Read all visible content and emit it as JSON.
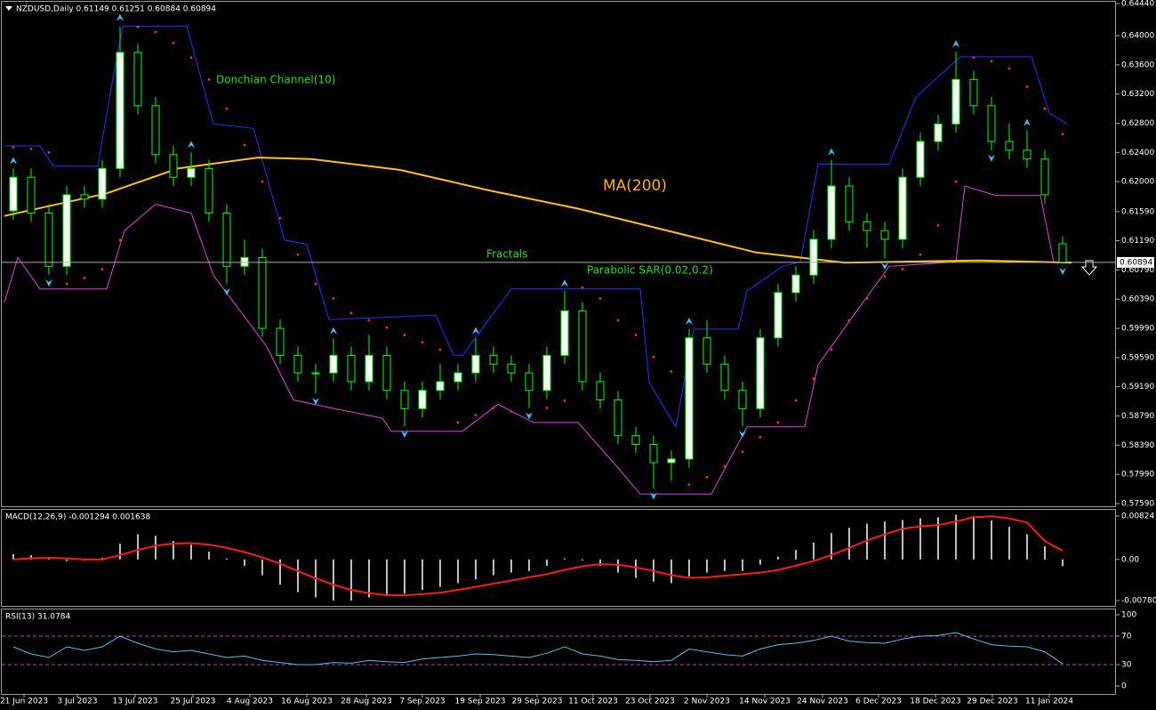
{
  "chart_data": [
    {
      "type": "candlestick",
      "title": "NZDUSD,Daily  0.61149 0.61251 0.60884 0.60894",
      "xlim": [
        -0.5,
        62
      ],
      "ylim": [
        0.57553,
        0.64464
      ],
      "yticks": [
        {
          "value": 0.6444,
          "label": "0.64440"
        },
        {
          "value": 0.64,
          "label": "0.64000"
        },
        {
          "value": 0.636,
          "label": "0.63600"
        },
        {
          "value": 0.632,
          "label": "0.63200"
        },
        {
          "value": 0.628,
          "label": "0.62800"
        },
        {
          "value": 0.624,
          "label": "0.62400"
        },
        {
          "value": 0.62,
          "label": "0.62000"
        },
        {
          "value": 0.6159,
          "label": "0.61590"
        },
        {
          "value": 0.6119,
          "label": "0.61190"
        },
        {
          "value": 0.6079,
          "label": "0.60790"
        },
        {
          "value": 0.6039,
          "label": "0.60390"
        },
        {
          "value": 0.5999,
          "label": "0.59990"
        },
        {
          "value": 0.5959,
          "label": "0.59590"
        },
        {
          "value": 0.5919,
          "label": "0.59190"
        },
        {
          "value": 0.5879,
          "label": "0.58790"
        },
        {
          "value": 0.5839,
          "label": "0.58390"
        },
        {
          "value": 0.5799,
          "label": "0.57990"
        },
        {
          "value": 0.5759,
          "label": "0.57590"
        }
      ],
      "color": "#00ff00",
      "open": [
        0.616,
        0.6206,
        0.6157,
        0.6084,
        0.6182,
        0.6176,
        0.6218,
        0.6377,
        0.6304,
        0.6237,
        0.6206,
        0.6218,
        0.6157,
        0.6084,
        0.6096,
        0.5999,
        0.5962,
        0.5938,
        0.5938,
        0.5962,
        0.5926,
        0.5962,
        0.5914,
        0.5889,
        0.5914,
        0.5926,
        0.5938,
        0.5962,
        0.595,
        0.5938,
        0.5914,
        0.5962,
        0.6023,
        0.5926,
        0.5901,
        0.5852,
        0.584,
        0.5815,
        0.582,
        0.5986,
        0.595,
        0.5914,
        0.5889,
        0.5986,
        0.6048,
        0.6072,
        0.6121,
        0.6194,
        0.6145,
        0.6133,
        0.6121,
        0.6206,
        0.6255,
        0.6279,
        0.634,
        0.6304,
        0.6255,
        0.6243,
        0.6231,
        0.61149
      ],
      "high": [
        0.6218,
        0.6218,
        0.6169,
        0.6194,
        0.6194,
        0.623,
        0.6412,
        0.6389,
        0.6316,
        0.6249,
        0.624,
        0.623,
        0.6169,
        0.612,
        0.6108,
        0.6011,
        0.5974,
        0.595,
        0.5985,
        0.5974,
        0.599,
        0.5974,
        0.5926,
        0.5926,
        0.595,
        0.595,
        0.5985,
        0.5974,
        0.5962,
        0.595,
        0.5974,
        0.605,
        0.6035,
        0.5938,
        0.5913,
        0.5864,
        0.5852,
        0.5832,
        0.5998,
        0.601,
        0.5962,
        0.5926,
        0.5998,
        0.606,
        0.6084,
        0.6133,
        0.623,
        0.6206,
        0.6157,
        0.6145,
        0.6218,
        0.6267,
        0.6291,
        0.6378,
        0.6352,
        0.6316,
        0.628,
        0.627,
        0.6243,
        0.61251
      ],
      "low": [
        0.6148,
        0.6145,
        0.6072,
        0.6072,
        0.6164,
        0.6164,
        0.6206,
        0.6292,
        0.6225,
        0.6194,
        0.6194,
        0.6145,
        0.606,
        0.6072,
        0.5987,
        0.595,
        0.5926,
        0.591,
        0.5926,
        0.5914,
        0.5914,
        0.5902,
        0.5865,
        0.5877,
        0.5902,
        0.5914,
        0.5926,
        0.5938,
        0.5926,
        0.589,
        0.5902,
        0.595,
        0.5914,
        0.5889,
        0.584,
        0.5828,
        0.578,
        0.579,
        0.5808,
        0.5938,
        0.5902,
        0.5865,
        0.5877,
        0.5974,
        0.6036,
        0.606,
        0.6109,
        0.6133,
        0.611,
        0.6095,
        0.6109,
        0.6194,
        0.6243,
        0.6267,
        0.6292,
        0.6243,
        0.6231,
        0.6219,
        0.617,
        0.60884
      ],
      "close": [
        0.6206,
        0.6157,
        0.6084,
        0.6182,
        0.6176,
        0.6218,
        0.6377,
        0.6304,
        0.6237,
        0.6206,
        0.6218,
        0.6157,
        0.6084,
        0.6096,
        0.5999,
        0.5962,
        0.5938,
        0.5938,
        0.5962,
        0.5926,
        0.5962,
        0.5914,
        0.5889,
        0.5914,
        0.5926,
        0.5938,
        0.5962,
        0.595,
        0.5938,
        0.5914,
        0.5962,
        0.6023,
        0.5926,
        0.5901,
        0.5852,
        0.584,
        0.5815,
        0.582,
        0.5986,
        0.595,
        0.5914,
        0.5889,
        0.5986,
        0.6048,
        0.6072,
        0.6121,
        0.6194,
        0.6145,
        0.6133,
        0.6121,
        0.6206,
        0.6255,
        0.6279,
        0.634,
        0.6304,
        0.6255,
        0.6243,
        0.6231,
        0.6182,
        0.60894
      ],
      "ma": {
        "name": "MA(200)",
        "color": "#ffc21a",
        "x": [
          -0.5,
          5.25,
          9.25,
          13.75,
          16.75,
          21.75,
          26.75,
          31.75,
          36.75,
          41.75,
          46.75,
          54.25,
          59.5
        ],
        "values": [
          0.6153,
          0.6184,
          0.6218,
          0.6233,
          0.6231,
          0.6216,
          0.6188,
          0.6163,
          0.6133,
          0.6103,
          0.6089,
          0.6092,
          0.6089
        ]
      },
      "donchian": {
        "name": "Donchian Channel(10)",
        "upper": {
          "color": "#2233ff",
          "x": [
            -0.5,
            1.5,
            2.25,
            4.75,
            5.5,
            6.15,
            9.75,
            11.25,
            13.5,
            15.25,
            16.5,
            17.75,
            23.75,
            24.75,
            25.25,
            28,
            35.25,
            35.75,
            37.25,
            38.25,
            40.75,
            41.25,
            43.25,
            44.25,
            45.25,
            49.25,
            50.75,
            53.25,
            57.25,
            58.25,
            59.25
          ],
          "values": [
            0.6249,
            0.6249,
            0.6221,
            0.6221,
            0.6328,
            0.6413,
            0.6413,
            0.6279,
            0.6273,
            0.612,
            0.6114,
            0.6011,
            0.6017,
            0.5962,
            0.5962,
            0.6053,
            0.6053,
            0.5925,
            0.5864,
            0.5998,
            0.5998,
            0.605,
            0.6084,
            0.609,
            0.6224,
            0.6224,
            0.6316,
            0.6371,
            0.6371,
            0.6294,
            0.6279
          ]
        },
        "lower": {
          "color": "#dd44dd",
          "x": [
            -0.5,
            0.25,
            1.5,
            5.25,
            6.25,
            8,
            10,
            11.25,
            14.25,
            15.75,
            18.25,
            20.75,
            21.25,
            25.25,
            27.25,
            29.25,
            31.75,
            33.75,
            35.25,
            39.25,
            41.25,
            44.5,
            45.25,
            47.25,
            49.25,
            53,
            53.5,
            55.25,
            57.75,
            58.5,
            59.5
          ],
          "values": [
            0.6035,
            0.6096,
            0.6053,
            0.6053,
            0.6133,
            0.6169,
            0.6157,
            0.6072,
            0.5974,
            0.5901,
            0.5888,
            0.5876,
            0.5858,
            0.5858,
            0.5895,
            0.587,
            0.587,
            0.5815,
            0.5772,
            0.5772,
            0.5864,
            0.5864,
            0.5949,
            0.6017,
            0.6084,
            0.609,
            0.6194,
            0.6181,
            0.6181,
            0.609,
            0.609
          ]
        }
      },
      "fractals": {
        "name": "Fractals",
        "color": "#33c8ff",
        "up": {
          "x": [
            0,
            6,
            10,
            18,
            26,
            31,
            38,
            46,
            53,
            57
          ],
          "values": [
            0.6224,
            0.642,
            0.6246,
            0.5991,
            0.5991,
            0.6056,
            0.6004,
            0.6236,
            0.6384,
            0.6276
          ]
        },
        "down": {
          "x": [
            2,
            12,
            17,
            22,
            29,
            36,
            41,
            49,
            55,
            59
          ],
          "values": [
            0.6066,
            0.6054,
            0.5904,
            0.5859,
            0.5884,
            0.5774,
            0.5859,
            0.6089,
            0.6237,
            0.6082
          ]
        }
      },
      "sar": {
        "name": "Parabolic SAR(0.02,0.2)",
        "color": "#ff2a44",
        "values": [
          0.6247,
          0.6245,
          0.624,
          0.606,
          0.6068,
          0.608,
          0.612,
          0.6412,
          0.6405,
          0.639,
          0.637,
          0.634,
          0.63,
          0.625,
          0.62,
          0.615,
          0.61,
          0.606,
          0.604,
          0.602,
          0.601,
          0.6,
          0.599,
          0.598,
          0.597,
          0.587,
          0.588,
          0.589,
          0.5885,
          0.588,
          0.589,
          0.59,
          0.6055,
          0.604,
          0.601,
          0.599,
          0.596,
          0.594,
          0.5785,
          0.5795,
          0.581,
          0.583,
          0.585,
          0.587,
          0.59,
          0.593,
          0.597,
          0.601,
          0.604,
          0.607,
          0.608,
          0.61,
          0.614,
          0.62,
          0.637,
          0.6365,
          0.6355,
          0.633,
          0.63,
          0.6265
        ]
      }
    },
    {
      "type": "macd",
      "title": "MACD(12,26,9) -0.001294 0.001638",
      "xlim": [
        -0.5,
        62
      ],
      "ylim": [
        -0.00882,
        0.00942
      ],
      "yticks": [
        {
          "value": 0.00824,
          "label": "0.00824"
        },
        {
          "value": 0,
          "label": "0.00"
        },
        {
          "value": -0.007802,
          "label": "-0.007802"
        }
      ],
      "histogram": {
        "color": "#ffffff",
        "values": [
          0.001,
          0.0008,
          0.0002,
          -0.0003,
          -0.0002,
          0.0003,
          0.003,
          0.0048,
          0.0045,
          0.0035,
          0.0028,
          0.0015,
          0.0002,
          -0.0012,
          -0.003,
          -0.0048,
          -0.0062,
          -0.0072,
          -0.0078,
          -0.0078,
          -0.0072,
          -0.0068,
          -0.0065,
          -0.0058,
          -0.0052,
          -0.0045,
          -0.0038,
          -0.003,
          -0.0025,
          -0.0022,
          -0.0012,
          0.0002,
          -0.0002,
          -0.0012,
          -0.0025,
          -0.0035,
          -0.0042,
          -0.0045,
          -0.0032,
          -0.0025,
          -0.0022,
          -0.0022,
          -0.001,
          0.0005,
          0.0018,
          0.0032,
          0.005,
          0.006,
          0.0068,
          0.0072,
          0.0075,
          0.0078,
          0.008,
          0.0085,
          0.0082,
          0.0074,
          0.0062,
          0.0048,
          0.0025,
          -0.001294
        ]
      },
      "signal": {
        "color": "#ff1a1a",
        "values": [
          0.0,
          0.0002,
          0.0003,
          0.0002,
          0.0,
          0.0,
          0.0008,
          0.0018,
          0.0026,
          0.003,
          0.0031,
          0.0028,
          0.0022,
          0.0014,
          0.0004,
          -0.0008,
          -0.0022,
          -0.0036,
          -0.0048,
          -0.0058,
          -0.0064,
          -0.0068,
          -0.0068,
          -0.0066,
          -0.0063,
          -0.0058,
          -0.0052,
          -0.0046,
          -0.004,
          -0.0034,
          -0.0028,
          -0.002,
          -0.0013,
          -0.0009,
          -0.001,
          -0.0015,
          -0.0022,
          -0.003,
          -0.0035,
          -0.0034,
          -0.0031,
          -0.0028,
          -0.0025,
          -0.002,
          -0.0012,
          -0.0003,
          0.0008,
          0.0022,
          0.0036,
          0.0048,
          0.0058,
          0.0063,
          0.0065,
          0.0072,
          0.008,
          0.0082,
          0.0078,
          0.007,
          0.0035,
          0.001638
        ]
      }
    },
    {
      "type": "line",
      "title": "RSI(13) 31.0784",
      "xlim": [
        -0.5,
        62
      ],
      "ylim": [
        -11.25,
        107.5
      ],
      "yticks": [
        0,
        30,
        70,
        100
      ],
      "color": "#4fc3e8",
      "values": [
        55,
        45,
        40,
        55,
        50,
        55,
        70,
        60,
        52,
        48,
        50,
        45,
        40,
        42,
        36,
        33,
        30,
        30,
        33,
        32,
        36,
        34,
        33,
        38,
        40,
        42,
        45,
        44,
        42,
        40,
        46,
        55,
        45,
        42,
        37,
        36,
        34,
        36,
        52,
        48,
        44,
        42,
        52,
        58,
        60,
        64,
        70,
        63,
        61,
        60,
        66,
        70,
        71,
        75,
        66,
        58,
        56,
        55,
        48,
        31.0784
      ],
      "xticks": [
        {
          "value": 0.6,
          "label": "21 Jun 2023"
        },
        {
          "value": 3.6,
          "label": "3 Jul 2023"
        },
        {
          "value": 6.85,
          "label": "13 Jul 2023"
        },
        {
          "value": 10.1,
          "label": "25 Jul 2023"
        },
        {
          "value": 13.3,
          "label": "4 Aug 2023"
        },
        {
          "value": 16.5,
          "label": "16 Aug 2023"
        },
        {
          "value": 19.85,
          "label": "28 Aug 2023"
        },
        {
          "value": 23.0,
          "label": "7 Sep 2023"
        },
        {
          "value": 26.25,
          "label": "19 Sep 2023"
        },
        {
          "value": 29.45,
          "label": "29 Sep 2023"
        },
        {
          "value": 32.6,
          "label": "11 Oct 2023"
        },
        {
          "value": 35.8,
          "label": "23 Oct 2023"
        },
        {
          "value": 39.0,
          "label": "2 Nov 2023"
        },
        {
          "value": 42.25,
          "label": "14 Nov 2023"
        },
        {
          "value": 45.5,
          "label": "24 Nov 2023"
        },
        {
          "value": 48.65,
          "label": "6 Dec 2023"
        },
        {
          "value": 51.85,
          "label": "18 Dec 2023"
        },
        {
          "value": 55.05,
          "label": "29 Dec 2023"
        },
        {
          "value": 58.25,
          "label": "11 Jan 2024"
        }
      ]
    }
  ]
}
